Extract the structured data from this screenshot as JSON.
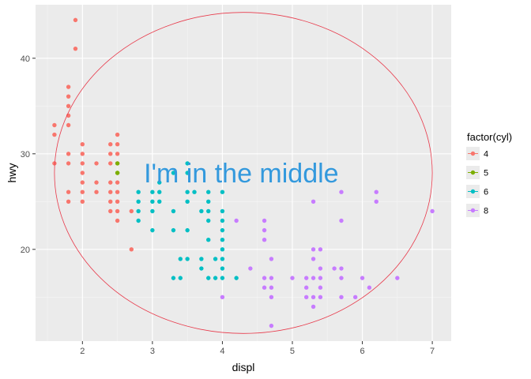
{
  "chart_data": {
    "type": "scatter",
    "title": "",
    "xlabel": "displ",
    "ylabel": "hwy",
    "xlim": [
      1.33,
      7.27
    ],
    "ylim": [
      10.4,
      45.6
    ],
    "x_ticks": [
      2,
      3,
      4,
      5,
      6,
      7
    ],
    "y_ticks": [
      20,
      30,
      40
    ],
    "x_minor_ticks": [
      1.5,
      2.5,
      3.5,
      4.5,
      5.5,
      6.5
    ],
    "y_minor_ticks": [
      15,
      25,
      35
    ],
    "grid": true,
    "legend": {
      "title": "factor(cyl)",
      "placement": "right"
    },
    "series": [
      {
        "name": "4",
        "color": "#F8766D",
        "points": [
          [
            1.6,
            33
          ],
          [
            1.6,
            32
          ],
          [
            1.6,
            29
          ],
          [
            1.8,
            37
          ],
          [
            1.8,
            36
          ],
          [
            1.8,
            35
          ],
          [
            1.8,
            34
          ],
          [
            1.8,
            33
          ],
          [
            1.8,
            30
          ],
          [
            1.8,
            29
          ],
          [
            1.8,
            26
          ],
          [
            1.8,
            25
          ],
          [
            1.9,
            44
          ],
          [
            1.9,
            41
          ],
          [
            2.0,
            31
          ],
          [
            2.0,
            30
          ],
          [
            2.0,
            29
          ],
          [
            2.0,
            28
          ],
          [
            2.0,
            27
          ],
          [
            2.0,
            26
          ],
          [
            2.0,
            25
          ],
          [
            2.2,
            29
          ],
          [
            2.2,
            27
          ],
          [
            2.2,
            26
          ],
          [
            2.4,
            31
          ],
          [
            2.4,
            30
          ],
          [
            2.4,
            29
          ],
          [
            2.4,
            27
          ],
          [
            2.4,
            26
          ],
          [
            2.4,
            25
          ],
          [
            2.4,
            24
          ],
          [
            2.5,
            32
          ],
          [
            2.5,
            31
          ],
          [
            2.5,
            30
          ],
          [
            2.5,
            29
          ],
          [
            2.5,
            27
          ],
          [
            2.5,
            26
          ],
          [
            2.5,
            25
          ],
          [
            2.5,
            24
          ],
          [
            2.5,
            23
          ],
          [
            2.7,
            24
          ],
          [
            2.7,
            20
          ]
        ]
      },
      {
        "name": "5",
        "color": "#7CAE00",
        "points": [
          [
            2.5,
            29
          ],
          [
            2.5,
            28
          ],
          [
            2.5,
            28
          ]
        ]
      },
      {
        "name": "6",
        "color": "#00BFC4",
        "points": [
          [
            2.8,
            26
          ],
          [
            2.8,
            25
          ],
          [
            2.8,
            24
          ],
          [
            2.8,
            23
          ],
          [
            3.0,
            26
          ],
          [
            3.0,
            25
          ],
          [
            3.0,
            24
          ],
          [
            3.0,
            22
          ],
          [
            3.1,
            26
          ],
          [
            3.1,
            27
          ],
          [
            3.1,
            25
          ],
          [
            3.3,
            24
          ],
          [
            3.3,
            22
          ],
          [
            3.3,
            17
          ],
          [
            3.3,
            28
          ],
          [
            3.4,
            19
          ],
          [
            3.4,
            17
          ],
          [
            3.5,
            29
          ],
          [
            3.5,
            28
          ],
          [
            3.5,
            26
          ],
          [
            3.5,
            25
          ],
          [
            3.5,
            22
          ],
          [
            3.5,
            19
          ],
          [
            3.6,
            26
          ],
          [
            3.7,
            24
          ],
          [
            3.7,
            19
          ],
          [
            3.7,
            18
          ],
          [
            3.8,
            26
          ],
          [
            3.8,
            25
          ],
          [
            3.8,
            24
          ],
          [
            3.8,
            23
          ],
          [
            3.8,
            21
          ],
          [
            3.8,
            17
          ],
          [
            3.9,
            19
          ],
          [
            3.9,
            17
          ],
          [
            4.0,
            26
          ],
          [
            4.0,
            24
          ],
          [
            4.0,
            23
          ],
          [
            4.0,
            22
          ],
          [
            4.0,
            21
          ],
          [
            4.0,
            20
          ],
          [
            4.0,
            19
          ],
          [
            4.0,
            18
          ],
          [
            4.0,
            17
          ],
          [
            4.2,
            17
          ]
        ]
      },
      {
        "name": "8",
        "color": "#C77CFF",
        "points": [
          [
            4.0,
            15
          ],
          [
            4.2,
            23
          ],
          [
            4.4,
            18
          ],
          [
            4.6,
            23
          ],
          [
            4.6,
            22
          ],
          [
            4.6,
            21
          ],
          [
            4.6,
            17
          ],
          [
            4.6,
            16
          ],
          [
            4.7,
            19
          ],
          [
            4.7,
            17
          ],
          [
            4.7,
            16
          ],
          [
            4.7,
            15
          ],
          [
            4.7,
            12
          ],
          [
            5.0,
            17
          ],
          [
            5.2,
            17
          ],
          [
            5.2,
            16
          ],
          [
            5.2,
            15
          ],
          [
            5.3,
            25
          ],
          [
            5.3,
            20
          ],
          [
            5.3,
            19
          ],
          [
            5.3,
            17
          ],
          [
            5.3,
            15
          ],
          [
            5.3,
            14
          ],
          [
            5.4,
            20
          ],
          [
            5.4,
            18
          ],
          [
            5.4,
            17
          ],
          [
            5.4,
            16
          ],
          [
            5.4,
            15
          ],
          [
            5.6,
            18
          ],
          [
            5.7,
            26
          ],
          [
            5.7,
            23
          ],
          [
            5.7,
            18
          ],
          [
            5.7,
            17
          ],
          [
            5.7,
            15
          ],
          [
            5.9,
            15
          ],
          [
            6.0,
            17
          ],
          [
            6.1,
            16
          ],
          [
            6.2,
            26
          ],
          [
            6.2,
            25
          ],
          [
            6.5,
            17
          ],
          [
            7.0,
            24
          ]
        ]
      }
    ],
    "annotation": {
      "text": "I'm in the middle",
      "x": 4.27,
      "y": 28,
      "color": "#3399DD"
    },
    "ellipse": {
      "center": [
        4.3,
        28
      ],
      "rx": 2.7,
      "ry": 16.8,
      "color": "#E8394A"
    }
  }
}
